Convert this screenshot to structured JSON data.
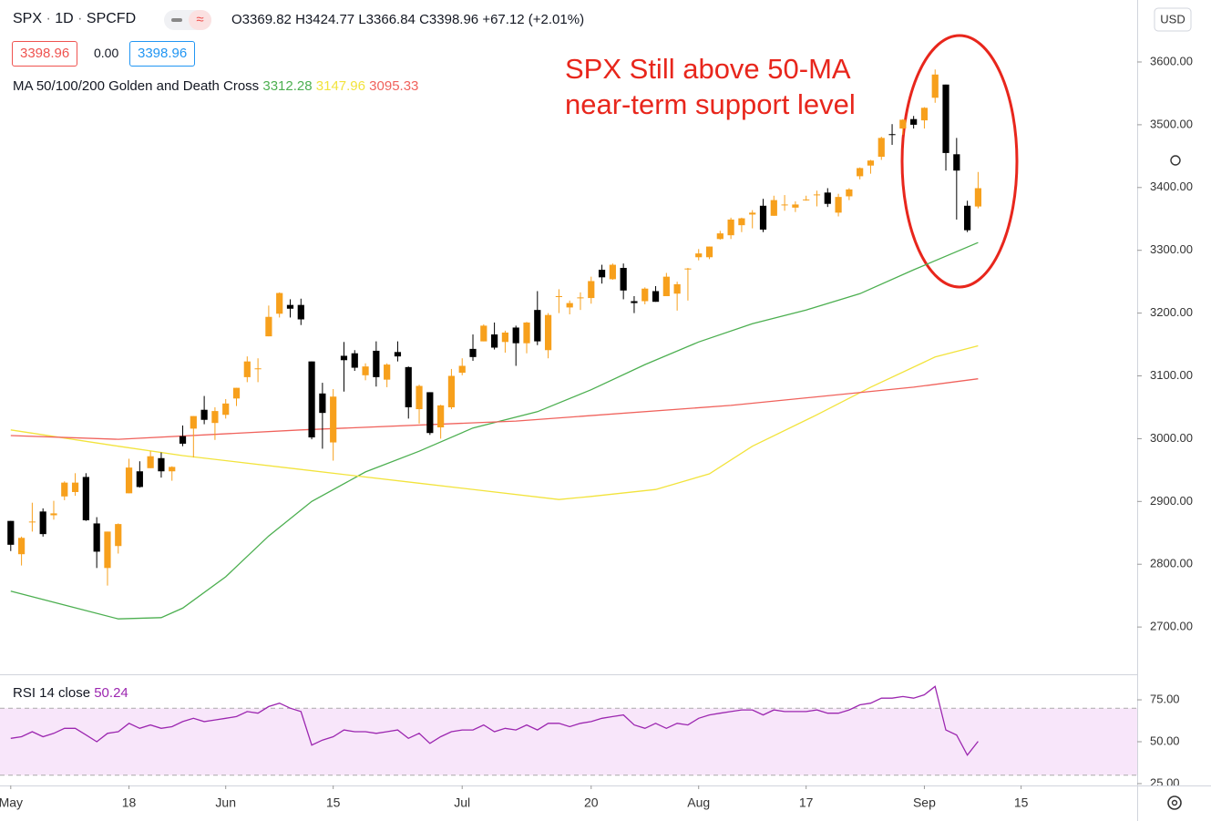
{
  "header": {
    "symbol": "SPX",
    "interval": "1D",
    "source": "SPCFD",
    "open_label": "O",
    "high_label": "H",
    "low_label": "L",
    "close_label": "C",
    "change": "+67.12",
    "change_pct": "(+2.01%)",
    "spread": "0.00",
    "currency": "USD",
    "annotation": [
      "SPX Still above 50-MA",
      "near-term support level"
    ]
  },
  "chart_data": [
    {
      "type": "candlestick",
      "indicator_label": "MA 50/100/200 Golden and Death Cross",
      "xlim": [
        -1,
        104.8
      ],
      "ylim": [
        2624.7,
        3698.7
      ],
      "yticks": [
        {
          "value": 2700,
          "label": "2700.00"
        },
        {
          "value": 2800,
          "label": "2800.00"
        },
        {
          "value": 2900,
          "label": "2900.00"
        },
        {
          "value": 3000,
          "label": "3000.00"
        },
        {
          "value": 3100,
          "label": "3100.00"
        },
        {
          "value": 3200,
          "label": "3200.00"
        },
        {
          "value": 3300,
          "label": "3300.00"
        },
        {
          "value": 3400,
          "label": "3400.00"
        },
        {
          "value": 3500,
          "label": "3500.00"
        },
        {
          "value": 3600,
          "label": "3600.00"
        }
      ],
      "up_color": "#f7a01c",
      "down_color": "#000000",
      "open": [
        2869,
        2816,
        2868,
        2884,
        2878,
        2908,
        2915,
        2939,
        2865,
        2794,
        2829,
        2913,
        2948,
        2953,
        2969,
        2948,
        3004,
        3016,
        3046,
        3025,
        3038,
        3064,
        3098,
        3112,
        3163,
        3199,
        3213,
        3213,
        3123,
        3072,
        2994,
        3132,
        3136,
        3101,
        3140,
        3094,
        3138,
        3114,
        3047,
        3074,
        3018,
        3050,
        3105,
        3143,
        3155,
        3166,
        3154,
        3177,
        3152,
        3205,
        3141,
        3226,
        3209,
        3224,
        3224,
        3269,
        3254,
        3272,
        3219,
        3219,
        3235,
        3227,
        3231,
        3270,
        3289,
        3289,
        3318,
        3324,
        3340,
        3357,
        3371,
        3355,
        3372,
        3368,
        3380,
        3388,
        3392,
        3360,
        3386,
        3418,
        3435,
        3449,
        3485,
        3494,
        3509,
        3507,
        3543,
        3564,
        3453,
        3371,
        3369.82
      ],
      "high": [
        2869,
        2844,
        2898,
        2889,
        2901,
        2932,
        2945,
        2945,
        2875,
        2852,
        2865,
        2968,
        2964,
        2980,
        2978,
        2956,
        3021,
        3036,
        3068,
        3050,
        3063,
        3081,
        3131,
        3128,
        3212,
        3233,
        3222,
        3223,
        3123,
        3089,
        3079,
        3154,
        3141,
        3120,
        3155,
        3120,
        3155,
        3115,
        3086,
        3074,
        3054,
        3111,
        3128,
        3166,
        3182,
        3185,
        3172,
        3180,
        3186,
        3235,
        3200,
        3238,
        3220,
        3233,
        3258,
        3277,
        3279,
        3279,
        3227,
        3241,
        3243,
        3264,
        3250,
        3272,
        3302,
        3306,
        3331,
        3352,
        3352,
        3364,
        3382,
        3387,
        3388,
        3378,
        3387,
        3395,
        3399,
        3390,
        3399,
        3432,
        3444,
        3481,
        3501,
        3509,
        3514,
        3528,
        3588,
        3564,
        3479,
        3379,
        3424.77
      ],
      "low": [
        2821,
        2798,
        2852,
        2844,
        2871,
        2902,
        2909,
        2869,
        2794,
        2766,
        2817,
        2913,
        2922,
        2953,
        2938,
        2933,
        2988,
        2970,
        3023,
        2998,
        3032,
        3052,
        3090,
        3090,
        3163,
        3193,
        3193,
        3181,
        2999,
        2984,
        2965,
        3075,
        3108,
        3093,
        3083,
        3082,
        3123,
        3032,
        3024,
        3006,
        3000,
        3047,
        3101,
        3124,
        3155,
        3142,
        3137,
        3116,
        3136,
        3149,
        3128,
        3200,
        3198,
        3205,
        3215,
        3247,
        3253,
        3222,
        3200,
        3214,
        3218,
        3227,
        3204,
        3220,
        3284,
        3286,
        3317,
        3318,
        3329,
        3335,
        3329,
        3355,
        3363,
        3361,
        3379,
        3370,
        3369,
        3354,
        3380,
        3413,
        3422,
        3444,
        3468,
        3484,
        3494,
        3494,
        3535,
        3427,
        3349,
        3329,
        3366.84
      ],
      "close": [
        2831,
        2842,
        2868,
        2848,
        2881,
        2930,
        2930,
        2870,
        2820,
        2852,
        2864,
        2954,
        2923,
        2972,
        2948,
        2955,
        2992,
        3036,
        3030,
        3044,
        3056,
        3081,
        3123,
        3112,
        3194,
        3232,
        3207,
        3190,
        3002,
        3041,
        3067,
        3125,
        3113,
        3115,
        3098,
        3118,
        3131,
        3050,
        3084,
        3009,
        3053,
        3100,
        3116,
        3130,
        3180,
        3145,
        3169,
        3152,
        3185,
        3155,
        3197,
        3227,
        3216,
        3225,
        3251,
        3257,
        3277,
        3236,
        3216,
        3239,
        3218,
        3258,
        3246,
        3271,
        3295,
        3306,
        3327,
        3349,
        3351,
        3360,
        3333,
        3380,
        3373,
        3373,
        3381,
        3389,
        3374,
        3385,
        3397,
        3431,
        3443,
        3479,
        3484,
        3508,
        3500,
        3527,
        3580,
        3455,
        3427,
        3332,
        3398.96
      ],
      "series": [
        {
          "color": "#4caf50",
          "x": [
            0,
            5,
            10,
            14,
            16,
            20,
            24,
            28,
            33,
            38,
            43,
            49,
            54,
            59,
            64,
            69,
            74,
            79,
            84,
            90
          ],
          "values": [
            2757,
            2735,
            2713,
            2715,
            2730,
            2780,
            2845,
            2900,
            2947,
            2980,
            3017,
            3043,
            3078,
            3118,
            3154,
            3183,
            3205,
            3231,
            3269,
            3312.28
          ]
        },
        {
          "color": "#f2e33c",
          "x": [
            0,
            10,
            16,
            27,
            38,
            51,
            54,
            60,
            65,
            69,
            75,
            80,
            86,
            90
          ],
          "values": [
            3014,
            2988,
            2973,
            2951,
            2929,
            2903,
            2908,
            2919,
            2944,
            2988,
            3038,
            3082,
            3130,
            3147.96
          ]
        },
        {
          "color": "#f0625c",
          "x": [
            0,
            10,
            27,
            47,
            67,
            84,
            90
          ],
          "values": [
            3005,
            2999,
            3014,
            3028,
            3053,
            3082,
            3095.33
          ]
        }
      ]
    },
    {
      "type": "line",
      "xlim": [
        -1,
        104.8
      ],
      "ylim": [
        23.9,
        89.7
      ],
      "yticks": [
        {
          "value": 25,
          "label": "25.00"
        },
        {
          "value": 50,
          "label": "50.00"
        },
        {
          "value": 75,
          "label": "75.00"
        }
      ],
      "band": [
        30,
        70
      ],
      "band_color": "#f8e6fa",
      "xticks": [
        {
          "value": 0,
          "label": "May"
        },
        {
          "value": 11,
          "label": "18"
        },
        {
          "value": 20,
          "label": "Jun"
        },
        {
          "value": 30,
          "label": "15"
        },
        {
          "value": 42,
          "label": "Jul"
        },
        {
          "value": 54,
          "label": "20"
        },
        {
          "value": 64,
          "label": "Aug"
        },
        {
          "value": 74,
          "label": "17"
        },
        {
          "value": 85,
          "label": "Sep"
        },
        {
          "value": 94,
          "label": "15"
        }
      ],
      "series": [
        {
          "name": "RSI 14 close",
          "color": "#9c27b0",
          "values": [
            52,
            53,
            56,
            53,
            55,
            58,
            58,
            54,
            50,
            55,
            56,
            61,
            58,
            60,
            58,
            59,
            62,
            64,
            62,
            63,
            64,
            65,
            68,
            67,
            71,
            73,
            70,
            68,
            48,
            51,
            53,
            57,
            56,
            56,
            55,
            56,
            57,
            52,
            55,
            49,
            53,
            56,
            57,
            57,
            60,
            56,
            58,
            57,
            60,
            57,
            61,
            61,
            59,
            61,
            62,
            64,
            65,
            66,
            60,
            58,
            61,
            58,
            61,
            60,
            64,
            66,
            67,
            68,
            69,
            69,
            66,
            69,
            68,
            68,
            68,
            69,
            67,
            67,
            69,
            72,
            73,
            76,
            76,
            77,
            76,
            78,
            83,
            57,
            54,
            42,
            50.24
          ]
        }
      ]
    }
  ]
}
